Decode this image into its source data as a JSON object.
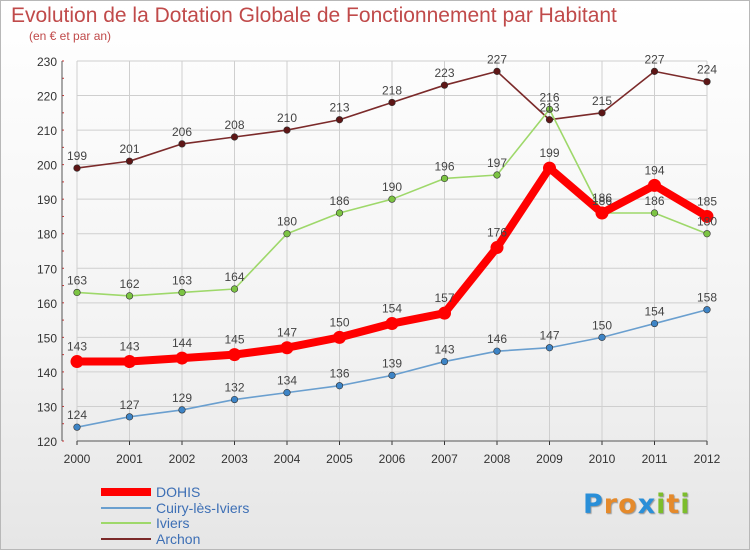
{
  "title": "Evolution de la Dotation Globale de Fonctionnement par Habitant",
  "subtitle": "(en € et par an)",
  "brand": {
    "letters": [
      "P",
      "r",
      "o",
      "x",
      "i",
      "t",
      "i"
    ],
    "colors": [
      "#2a8fd8",
      "#e58a2b",
      "#e58a2b",
      "#2a8fd8",
      "#7cbd2c",
      "#e58a2b",
      "#7cbd2c"
    ]
  },
  "chart_data": {
    "type": "line",
    "title": "Evolution de la Dotation Globale de Fonctionnement par Habitant",
    "subtitle": "(en € et par an)",
    "xlabel": "",
    "ylabel": "",
    "x": [
      "2000",
      "2001",
      "2002",
      "2003",
      "2004",
      "2005",
      "2006",
      "2007",
      "2008",
      "2009",
      "2010",
      "2011",
      "2012"
    ],
    "ylim": [
      120,
      230
    ],
    "yticks": [
      120,
      130,
      140,
      150,
      160,
      170,
      180,
      190,
      200,
      210,
      220,
      230
    ],
    "grid": true,
    "legend": "bottom-left",
    "series": [
      {
        "name": "Archon",
        "color": "#7b2a2a",
        "marker": "#5e1616",
        "emphasis": false,
        "values": [
          199,
          201,
          206,
          208,
          210,
          213,
          218,
          223,
          227,
          213,
          215,
          227,
          224
        ]
      },
      {
        "name": "Iviers",
        "color": "#9ed86a",
        "marker": "#7cc443",
        "emphasis": false,
        "values": [
          163,
          162,
          163,
          164,
          180,
          186,
          190,
          196,
          197,
          216,
          186,
          186,
          180
        ]
      },
      {
        "name": "Cuiry-lès-Iviers",
        "color": "#6a9fcf",
        "marker": "#3d84c6",
        "emphasis": false,
        "values": [
          124,
          127,
          129,
          132,
          134,
          136,
          139,
          143,
          146,
          147,
          150,
          154,
          158
        ]
      },
      {
        "name": "DOHIS",
        "color": "#ff0000",
        "marker": "#ff0000",
        "emphasis": true,
        "values": [
          143,
          143,
          144,
          145,
          147,
          150,
          154,
          157,
          176,
          199,
          186,
          194,
          185
        ]
      }
    ],
    "legend_order": [
      "DOHIS",
      "Cuiry-lès-Iviers",
      "Iviers",
      "Archon"
    ]
  }
}
